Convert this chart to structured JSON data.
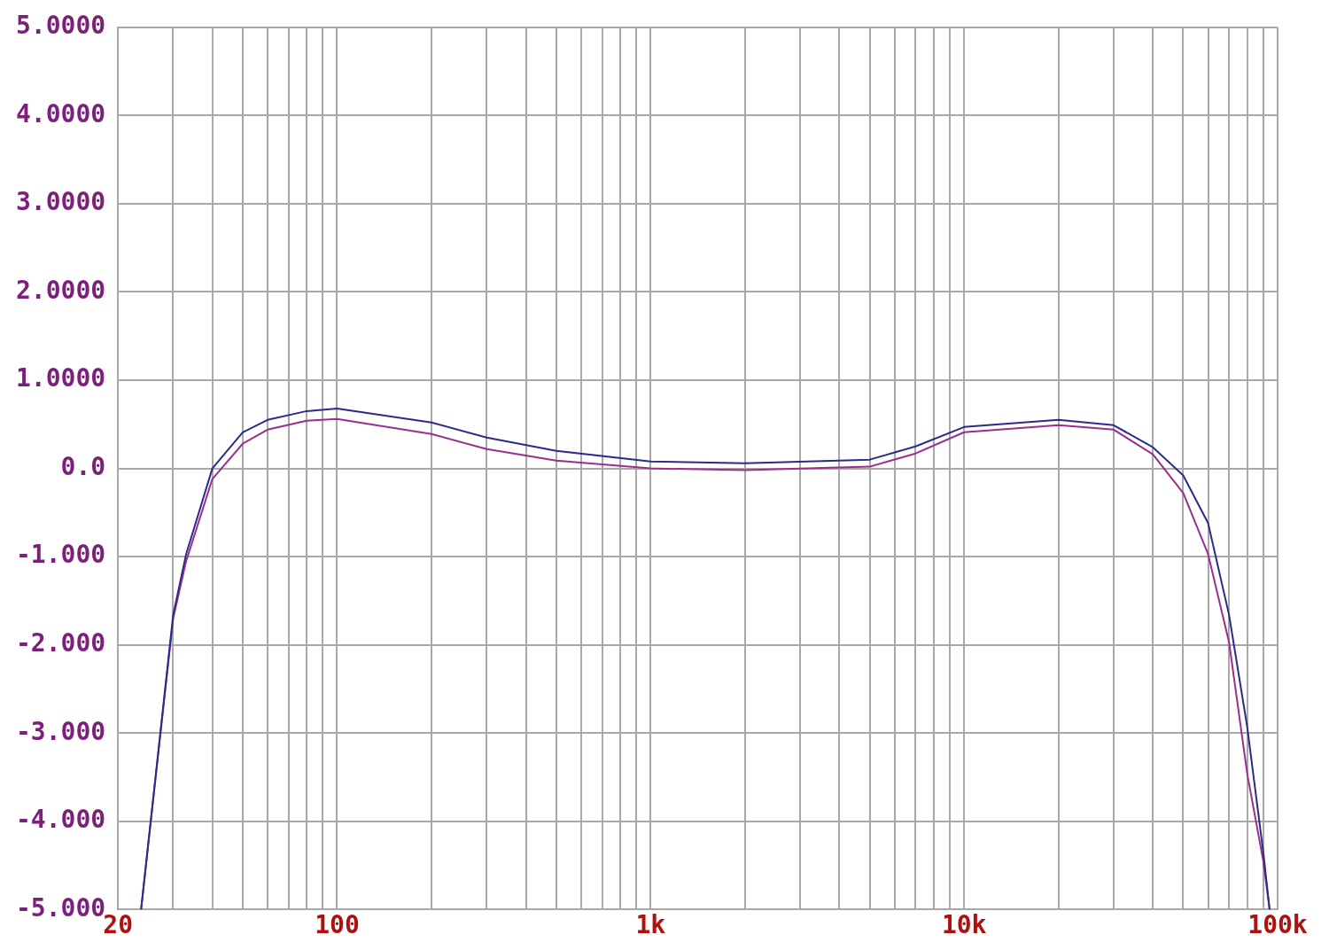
{
  "chart_data": {
    "type": "line",
    "log": "x",
    "grid": true,
    "legend": false,
    "marker": "none",
    "line_style": "solid",
    "xlim": [
      20,
      100000
    ],
    "xticks": [
      20,
      {
        "value": 30,
        "label": null
      },
      {
        "value": 40,
        "label": null
      },
      {
        "value": 50,
        "label": null
      },
      {
        "value": 60,
        "label": null
      },
      {
        "value": 70,
        "label": null
      },
      {
        "value": 80,
        "label": null
      },
      {
        "value": 90,
        "label": null
      },
      100,
      {
        "value": 200,
        "label": null
      },
      {
        "value": 300,
        "label": null
      },
      {
        "value": 400,
        "label": null
      },
      {
        "value": 500,
        "label": null
      },
      {
        "value": 600,
        "label": null
      },
      {
        "value": 700,
        "label": null
      },
      {
        "value": 800,
        "label": null
      },
      {
        "value": 900,
        "label": null
      },
      {
        "value": 1000,
        "label": "1k"
      },
      {
        "value": 2000,
        "label": null
      },
      {
        "value": 3000,
        "label": null
      },
      {
        "value": 4000,
        "label": null
      },
      {
        "value": 5000,
        "label": null
      },
      {
        "value": 6000,
        "label": null
      },
      {
        "value": 7000,
        "label": null
      },
      {
        "value": 8000,
        "label": null
      },
      {
        "value": 9000,
        "label": null
      },
      {
        "value": 10000,
        "label": "10k"
      },
      {
        "value": 20000,
        "label": null
      },
      {
        "value": 30000,
        "label": null
      },
      {
        "value": 40000,
        "label": null
      },
      {
        "value": 50000,
        "label": null
      },
      {
        "value": 60000,
        "label": null
      },
      {
        "value": 70000,
        "label": null
      },
      {
        "value": 80000,
        "label": null
      },
      {
        "value": 90000,
        "label": null
      },
      {
        "value": 100000,
        "label": "100k"
      }
    ],
    "ylim": [
      -5,
      5
    ],
    "yticks": [
      {
        "value": 5,
        "label": "5.0000"
      },
      {
        "value": 4,
        "label": "4.0000"
      },
      {
        "value": 3,
        "label": "3.0000"
      },
      {
        "value": 2,
        "label": "2.0000"
      },
      {
        "value": 1,
        "label": "1.0000"
      },
      {
        "value": 0,
        "label": "0.0"
      },
      {
        "value": -1,
        "label": "-1.000"
      },
      {
        "value": -2,
        "label": "-2.000"
      },
      {
        "value": -3,
        "label": "-3.000"
      },
      {
        "value": -4,
        "label": "-4.000"
      },
      {
        "value": -5,
        "label": "-5.000"
      }
    ],
    "x": [
      23.7,
      30,
      33,
      40,
      50,
      60,
      80,
      100,
      200,
      300,
      500,
      1000,
      2000,
      5000,
      7000,
      10000,
      20000,
      30000,
      40000,
      50000,
      60000,
      70000,
      80000,
      90000,
      94300
    ],
    "series": [
      {
        "color": "#2b2b8c",
        "values": [
          -5,
          -1.66,
          -0.97,
          0,
          0.41,
          0.55,
          0.65,
          0.68,
          0.52,
          0.35,
          0.2,
          0.08,
          0.06,
          0.1,
          0.25,
          0.47,
          0.55,
          0.49,
          0.24,
          -0.08,
          -0.62,
          -1.66,
          -2.93,
          -4.35,
          -5
        ]
      },
      {
        "color": "#9b2e8e",
        "values": [
          -5,
          -1.7,
          -1.05,
          -0.12,
          0.28,
          0.44,
          0.54,
          0.56,
          0.39,
          0.22,
          0.09,
          0,
          -0.02,
          0.02,
          0.17,
          0.41,
          0.49,
          0.44,
          0.16,
          -0.28,
          -0.97,
          -1.97,
          -3.46,
          -4.45,
          -5
        ]
      }
    ]
  }
}
